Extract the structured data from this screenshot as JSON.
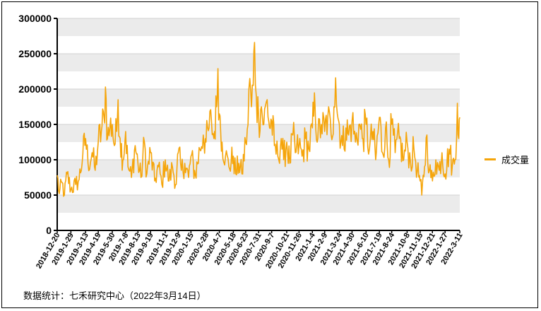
{
  "chart_data": {
    "type": "line",
    "ylim": [
      0,
      300000
    ],
    "yticks": [
      "0",
      "50000",
      "100000",
      "150000",
      "200000",
      "250000",
      "300000"
    ],
    "grid": "horizontal-bands",
    "legend_position": "right",
    "series": [
      {
        "name": "成交量",
        "color": "#f5a50b",
        "anchors": [
          [
            "2018-12-20",
            78000
          ],
          [
            "2018-12-26",
            52000
          ],
          [
            "2019-01-03",
            68000
          ],
          [
            "2019-01-10",
            50000
          ],
          [
            "2019-01-18",
            80000
          ],
          [
            "2019-01-29",
            58000
          ],
          [
            "2019-02-12",
            65000
          ],
          [
            "2019-02-22",
            72000
          ],
          [
            "2019-03-05",
            108000
          ],
          [
            "2019-03-13",
            130000
          ],
          [
            "2019-03-20",
            95000
          ],
          [
            "2019-04-01",
            110000
          ],
          [
            "2019-04-10",
            85000
          ],
          [
            "2019-04-19",
            125000
          ],
          [
            "2019-04-28",
            140000
          ],
          [
            "2019-05-06",
            160000
          ],
          [
            "2019-05-10",
            203000
          ],
          [
            "2019-05-16",
            130000
          ],
          [
            "2019-05-23",
            145000
          ],
          [
            "2019-05-30",
            150000
          ],
          [
            "2019-06-05",
            120000
          ],
          [
            "2019-06-12",
            140000
          ],
          [
            "2019-06-16",
            185000
          ],
          [
            "2019-06-22",
            130000
          ],
          [
            "2019-06-30",
            100000
          ],
          [
            "2019-07-08",
            140000
          ],
          [
            "2019-07-15",
            90000
          ],
          [
            "2019-07-25",
            75000
          ],
          [
            "2019-08-05",
            120000
          ],
          [
            "2019-08-13",
            95000
          ],
          [
            "2019-08-22",
            75000
          ],
          [
            "2019-09-01",
            125000
          ],
          [
            "2019-09-08",
            80000
          ],
          [
            "2019-09-19",
            110000
          ],
          [
            "2019-10-01",
            70000
          ],
          [
            "2019-10-12",
            90000
          ],
          [
            "2019-10-22",
            65000
          ],
          [
            "2019-11-01",
            100000
          ],
          [
            "2019-11-12",
            70000
          ],
          [
            "2019-11-22",
            90000
          ],
          [
            "2019-12-03",
            65000
          ],
          [
            "2019-12-09",
            110000
          ],
          [
            "2019-12-18",
            85000
          ],
          [
            "2019-12-28",
            95000
          ],
          [
            "2020-01-08",
            75000
          ],
          [
            "2020-01-15",
            105000
          ],
          [
            "2020-01-28",
            78000
          ],
          [
            "2020-02-10",
            115000
          ],
          [
            "2020-02-20",
            135000
          ],
          [
            "2020-02-28",
            125000
          ],
          [
            "2020-03-08",
            145000
          ],
          [
            "2020-03-15",
            155000
          ],
          [
            "2020-03-22",
            130000
          ],
          [
            "2020-03-30",
            175000
          ],
          [
            "2020-04-03",
            229000
          ],
          [
            "2020-04-07",
            165000
          ],
          [
            "2020-04-15",
            125000
          ],
          [
            "2020-04-25",
            105000
          ],
          [
            "2020-05-05",
            90000
          ],
          [
            "2020-05-18",
            105000
          ],
          [
            "2020-05-25",
            80000
          ],
          [
            "2020-06-03",
            95000
          ],
          [
            "2020-06-12",
            80000
          ],
          [
            "2020-06-23",
            125000
          ],
          [
            "2020-06-30",
            150000
          ],
          [
            "2020-07-05",
            215000
          ],
          [
            "2020-07-10",
            175000
          ],
          [
            "2020-07-15",
            205000
          ],
          [
            "2020-07-19",
            266000
          ],
          [
            "2020-07-24",
            190000
          ],
          [
            "2020-07-31",
            160000
          ],
          [
            "2020-08-08",
            175000
          ],
          [
            "2020-08-15",
            150000
          ],
          [
            "2020-08-25",
            185000
          ],
          [
            "2020-09-01",
            145000
          ],
          [
            "2020-09-07",
            155000
          ],
          [
            "2020-09-15",
            120000
          ],
          [
            "2020-09-25",
            105000
          ],
          [
            "2020-10-05",
            130000
          ],
          [
            "2020-10-12",
            100000
          ],
          [
            "2020-10-21",
            125000
          ],
          [
            "2020-10-30",
            95000
          ],
          [
            "2020-11-08",
            135000
          ],
          [
            "2020-11-15",
            110000
          ],
          [
            "2020-11-26",
            120000
          ],
          [
            "2020-12-05",
            105000
          ],
          [
            "2020-12-15",
            130000
          ],
          [
            "2020-12-25",
            115000
          ],
          [
            "2021-01-04",
            145000
          ],
          [
            "2021-01-12",
            175000
          ],
          [
            "2021-01-20",
            130000
          ],
          [
            "2021-01-30",
            150000
          ],
          [
            "2021-02-09",
            140000
          ],
          [
            "2021-02-18",
            160000
          ],
          [
            "2021-02-28",
            135000
          ],
          [
            "2021-03-08",
            175000
          ],
          [
            "2021-03-13",
            216000
          ],
          [
            "2021-03-18",
            165000
          ],
          [
            "2021-03-24",
            150000
          ],
          [
            "2021-04-02",
            120000
          ],
          [
            "2021-04-12",
            145000
          ],
          [
            "2021-04-20",
            135000
          ],
          [
            "2021-04-30",
            155000
          ],
          [
            "2021-05-10",
            125000
          ],
          [
            "2021-05-20",
            150000
          ],
          [
            "2021-05-30",
            130000
          ],
          [
            "2021-06-10",
            150000
          ],
          [
            "2021-06-20",
            115000
          ],
          [
            "2021-06-30",
            140000
          ],
          [
            "2021-07-08",
            100000
          ],
          [
            "2021-07-19",
            160000
          ],
          [
            "2021-07-28",
            110000
          ],
          [
            "2021-08-06",
            145000
          ],
          [
            "2021-08-15",
            100000
          ],
          [
            "2021-08-24",
            150000
          ],
          [
            "2021-09-03",
            110000
          ],
          [
            "2021-09-15",
            130000
          ],
          [
            "2021-09-28",
            100000
          ],
          [
            "2021-10-08",
            125000
          ],
          [
            "2021-10-18",
            95000
          ],
          [
            "2021-10-28",
            115000
          ],
          [
            "2021-11-07",
            85000
          ],
          [
            "2021-11-15",
            70000
          ],
          [
            "2021-11-20",
            50000
          ],
          [
            "2021-11-28",
            90000
          ],
          [
            "2021-12-05",
            135000
          ],
          [
            "2021-12-12",
            85000
          ],
          [
            "2021-12-21",
            70000
          ],
          [
            "2021-12-31",
            100000
          ],
          [
            "2022-01-10",
            85000
          ],
          [
            "2022-01-18",
            110000
          ],
          [
            "2022-01-27",
            80000
          ],
          [
            "2022-02-08",
            115000
          ],
          [
            "2022-02-17",
            90000
          ],
          [
            "2022-02-25",
            100000
          ],
          [
            "2022-03-04",
            180000
          ],
          [
            "2022-03-08",
            130000
          ],
          [
            "2022-03-11",
            160000
          ]
        ]
      }
    ],
    "x_labels": [
      "2018-12-20",
      "2019-1-29",
      "2019-3-13",
      "2019-4-19",
      "2019-5-30",
      "2019-7-8",
      "2019-8-13",
      "2019-9-19",
      "2019-11-1",
      "2019-12-9",
      "2020-1-15",
      "2020-2-28",
      "2020-4-7",
      "2020-5-18",
      "2020-6-23",
      "2020-7-31",
      "2020-9-7",
      "2020-10-21",
      "2020-11-26",
      "2021-1-4",
      "2021-2-9",
      "2021-3-24",
      "2021-4-30",
      "2021-6-10",
      "2021-7-19",
      "2021-8-24",
      "2021-10-8",
      "2021-11-15",
      "2021-12-21",
      "2022-1-27",
      "2022-3-11"
    ]
  },
  "source_note": "数据统计：七禾研究中心（2022年3月14日）"
}
